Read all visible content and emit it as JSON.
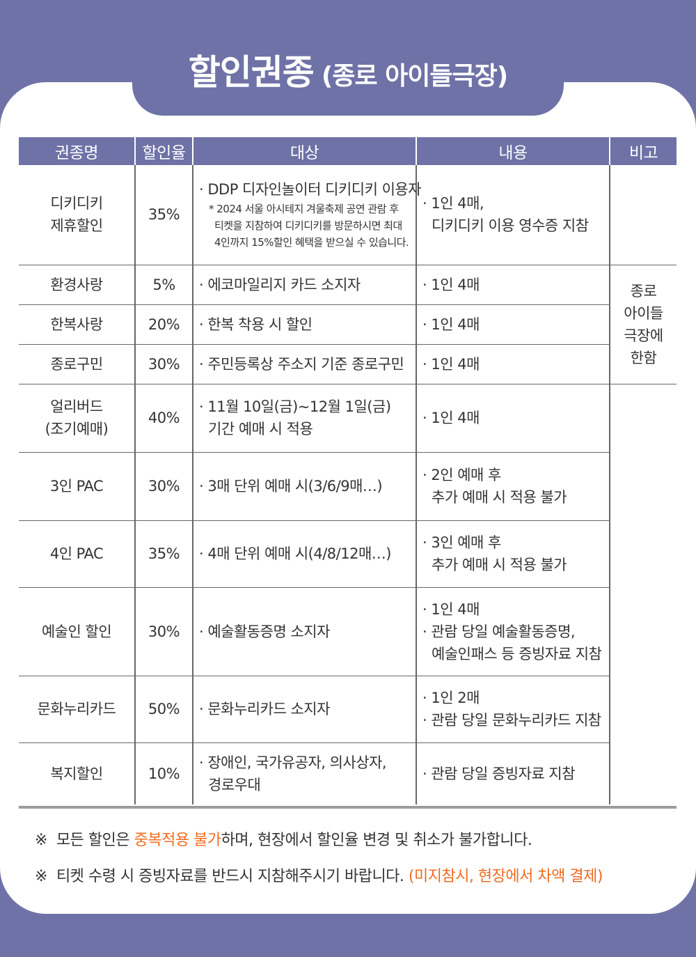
{
  "title": {
    "main": "할인권종",
    "sub": "(종로 아이들극장)"
  },
  "table": {
    "headers": [
      "권종명",
      "할인율",
      "대상",
      "내용",
      "비고"
    ],
    "rows": [
      {
        "name": [
          "디키디키",
          "제휴할인"
        ],
        "rate": "35%",
        "target": [
          "· DDP 디자인놀이터 디키디키 이용자"
        ],
        "target_note": [
          "* 2024 서울 아시테지 겨울축제 공연 관람 후",
          "티켓을 지참하여 디키디키를 방문하시면  최대",
          "4인까지 15%할인 혜택을 받으실 수 있습니다."
        ],
        "content": [
          "· 1인 4매,",
          "디키디키 이용 영수증 지참"
        ]
      },
      {
        "name": [
          "환경사랑"
        ],
        "rate": "5%",
        "target": [
          "· 에코마일리지 카드 소지자"
        ],
        "content": [
          "· 1인 4매"
        ]
      },
      {
        "name": [
          "한복사랑"
        ],
        "rate": "20%",
        "target": [
          "· 한복 착용 시 할인"
        ],
        "content": [
          "· 1인 4매"
        ]
      },
      {
        "name": [
          "종로구민"
        ],
        "rate": "30%",
        "target": [
          "· 주민등록상 주소지 기준 종로구민"
        ],
        "content": [
          "· 1인 4매"
        ]
      },
      {
        "name": [
          "얼리버드",
          "(조기예매)"
        ],
        "rate": "40%",
        "target": [
          "· 11월 10일(금)~12월 1일(금)",
          "기간 예매 시 적용"
        ],
        "content": [
          "· 1인 4매"
        ]
      },
      {
        "name": [
          "3인 PAC"
        ],
        "rate": "30%",
        "target": [
          "· 3매 단위 예매 시(3/6/9매…)"
        ],
        "content": [
          "· 2인 예매 후",
          "추가 예매 시 적용 불가"
        ]
      },
      {
        "name": [
          "4인 PAC"
        ],
        "rate": "35%",
        "target": [
          "· 4매 단위 예매 시(4/8/12매…)"
        ],
        "content": [
          "· 3인 예매 후",
          "추가 예매 시 적용 불가"
        ]
      },
      {
        "name": [
          "예술인 할인"
        ],
        "rate": "30%",
        "target": [
          "· 예술활동증명 소지자"
        ],
        "content": [
          "· 1인 4매",
          "· 관람 당일 예술활동증명,",
          "예술인패스 등 증빙자료 지참"
        ]
      },
      {
        "name": [
          "문화누리카드"
        ],
        "rate": "50%",
        "target": [
          "· 문화누리카드 소지자"
        ],
        "content": [
          "· 1인 2매",
          "· 관람 당일 문화누리카드 지참"
        ]
      },
      {
        "name": [
          "복지할인"
        ],
        "rate": "10%",
        "target": [
          "· 장애인, 국가유공자, 의사상자,",
          "경로우대"
        ],
        "content": [
          "· 관람 당일 증빙자료 지참"
        ]
      }
    ],
    "note_merged": [
      "종로",
      "아이들",
      "극장에",
      "한함"
    ]
  },
  "footnotes": [
    {
      "mark": "※",
      "before": "모든 할인은 ",
      "highlight": "중복적용 불가",
      "after": "하며, 현장에서 할인율 변경 및 취소가 불가합니다."
    },
    {
      "mark": "※",
      "before": "티켓 수령 시 증빙자료를 반드시 지참해주시기 바랍니다. ",
      "highlight": "(미지참시, 현장에서 차액 결제)",
      "after": ""
    }
  ],
  "colors": {
    "background": "#6e72a6",
    "header_bg": "#6e72a6",
    "highlight": "#f06b1f"
  }
}
